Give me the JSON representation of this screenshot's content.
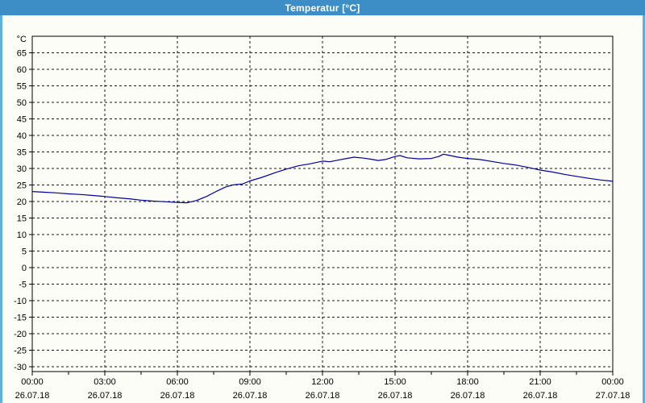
{
  "window": {
    "title": "Temperatur [°C]",
    "colors": {
      "titlebar": "#3d8ec6",
      "titlebar_text": "#ffffff",
      "border": "#5fafde",
      "background": "#fcfdf6",
      "axis": "#000000",
      "grid": "#1a1a1a"
    }
  },
  "chart_data": {
    "type": "line",
    "title": "Temperatur [°C]",
    "y_unit": "°C",
    "xlabel": "",
    "ylabel": "°C",
    "grid": true,
    "legend_position": "none",
    "xlim_hours": [
      0,
      24
    ],
    "ylim": [
      -31.5,
      70
    ],
    "y_ticks": [
      65,
      60,
      55,
      50,
      45,
      40,
      35,
      30,
      25,
      20,
      15,
      10,
      5,
      0,
      -5,
      -10,
      -15,
      -20,
      -25,
      -30
    ],
    "x_minor_step_hours": 1.5,
    "x_major_ticks": [
      {
        "hour": 0,
        "time": "00:00",
        "date": "26.07.18"
      },
      {
        "hour": 3,
        "time": "03:00",
        "date": "26.07.18"
      },
      {
        "hour": 6,
        "time": "06:00",
        "date": "26.07.18"
      },
      {
        "hour": 9,
        "time": "09:00",
        "date": "26.07.18"
      },
      {
        "hour": 12,
        "time": "12:00",
        "date": "26.07.18"
      },
      {
        "hour": 15,
        "time": "15:00",
        "date": "26.07.18"
      },
      {
        "hour": 18,
        "time": "18:00",
        "date": "26.07.18"
      },
      {
        "hour": 21,
        "time": "21:00",
        "date": "26.07.18"
      },
      {
        "hour": 24,
        "time": "00:00",
        "date": "27.07.18"
      }
    ],
    "series": [
      {
        "name": "Temperatur",
        "color": "#0000a0",
        "points": [
          [
            0,
            23.0
          ],
          [
            0.5,
            22.8
          ],
          [
            1,
            22.6
          ],
          [
            1.5,
            22.3
          ],
          [
            2,
            22.1
          ],
          [
            2.5,
            21.8
          ],
          [
            3,
            21.5
          ],
          [
            3.5,
            21.1
          ],
          [
            4,
            20.8
          ],
          [
            4.5,
            20.4
          ],
          [
            5,
            20.1
          ],
          [
            5.5,
            19.9
          ],
          [
            6,
            19.7
          ],
          [
            6.4,
            19.6
          ],
          [
            6.8,
            20.3
          ],
          [
            7.2,
            21.5
          ],
          [
            7.6,
            23.0
          ],
          [
            8,
            24.4
          ],
          [
            8.3,
            25.0
          ],
          [
            8.7,
            25.3
          ],
          [
            9,
            26.2
          ],
          [
            9.5,
            27.3
          ],
          [
            10,
            28.6
          ],
          [
            10.5,
            29.8
          ],
          [
            11,
            30.8
          ],
          [
            11.5,
            31.4
          ],
          [
            12,
            32.2
          ],
          [
            12.3,
            32.0
          ],
          [
            12.7,
            32.6
          ],
          [
            13,
            33.0
          ],
          [
            13.3,
            33.4
          ],
          [
            13.7,
            33.1
          ],
          [
            14,
            32.8
          ],
          [
            14.3,
            32.4
          ],
          [
            14.6,
            32.7
          ],
          [
            15,
            33.6
          ],
          [
            15.2,
            33.9
          ],
          [
            15.5,
            33.2
          ],
          [
            16,
            32.9
          ],
          [
            16.5,
            33.0
          ],
          [
            16.8,
            33.6
          ],
          [
            17,
            34.3
          ],
          [
            17.2,
            34.0
          ],
          [
            17.6,
            33.4
          ],
          [
            18,
            33.0
          ],
          [
            18.5,
            32.7
          ],
          [
            19,
            32.1
          ],
          [
            19.5,
            31.5
          ],
          [
            20,
            31.0
          ],
          [
            20.5,
            30.3
          ],
          [
            21,
            29.5
          ],
          [
            21.5,
            28.9
          ],
          [
            22,
            28.2
          ],
          [
            22.5,
            27.6
          ],
          [
            23,
            27.0
          ],
          [
            23.5,
            26.5
          ],
          [
            24,
            26.1
          ]
        ]
      }
    ]
  }
}
